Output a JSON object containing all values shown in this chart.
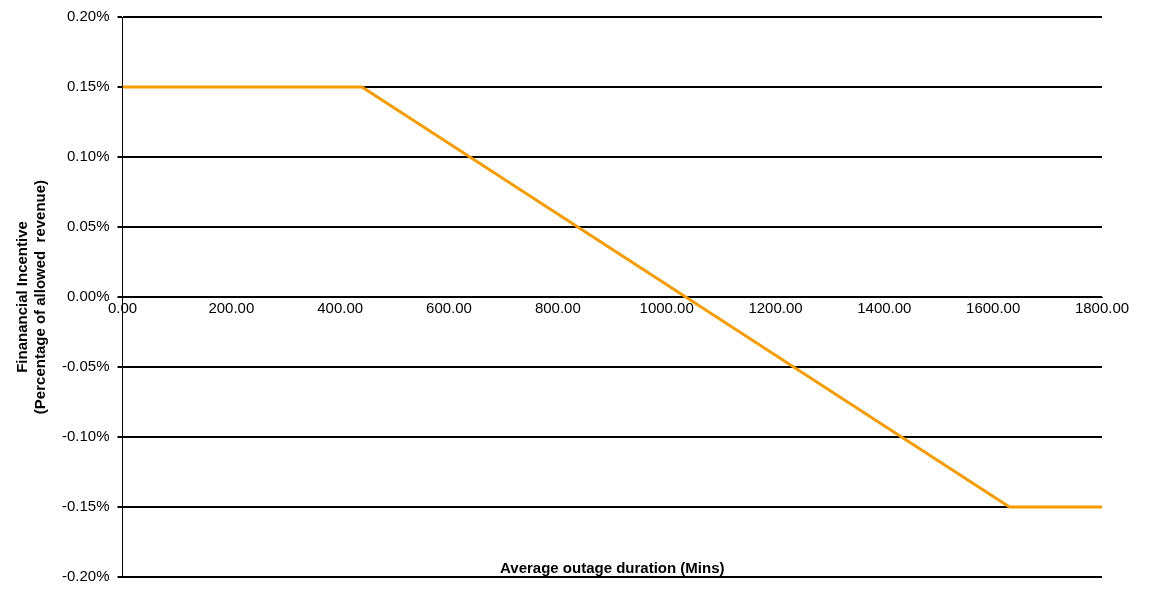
{
  "chart_data": {
    "type": "line",
    "xlabel": "Average outage duration (Mins)",
    "ylabel": "Finanancial Incentive\n(Percentage of allowed  revenue)",
    "x": [
      0,
      440,
      1630,
      1800
    ],
    "series": [
      {
        "color": "#f59c00",
        "values": [
          0.15,
          0.15,
          -0.15,
          -0.15
        ]
      }
    ],
    "xlim": [
      0,
      1800
    ],
    "xticks": [
      {
        "value": 0,
        "label": "0.00"
      },
      {
        "value": 200,
        "label": "200.00"
      },
      {
        "value": 400,
        "label": "400.00"
      },
      {
        "value": 600,
        "label": "600.00"
      },
      {
        "value": 800,
        "label": "800.00"
      },
      {
        "value": 1000,
        "label": "1000.00"
      },
      {
        "value": 1200,
        "label": "1200.00"
      },
      {
        "value": 1400,
        "label": "1400.00"
      },
      {
        "value": 1600,
        "label": "1600.00"
      },
      {
        "value": 1800,
        "label": "1800.00"
      }
    ],
    "ylim": [
      -0.2,
      0.2
    ],
    "yticks": [
      {
        "value": -0.2,
        "label": "-0.20%"
      },
      {
        "value": -0.15,
        "label": "-0.15%"
      },
      {
        "value": -0.1,
        "label": "-0.10%"
      },
      {
        "value": -0.05,
        "label": "-0.05%"
      },
      {
        "value": 0,
        "label": "0.00%"
      },
      {
        "value": 0.05,
        "label": "0.05%"
      },
      {
        "value": 0.1,
        "label": "0.10%"
      },
      {
        "value": 0.15,
        "label": "0.15%"
      },
      {
        "value": 0.2,
        "label": "0.20%"
      }
    ],
    "grid": "y",
    "legend": false,
    "marker": "none",
    "line_style": "solid"
  }
}
